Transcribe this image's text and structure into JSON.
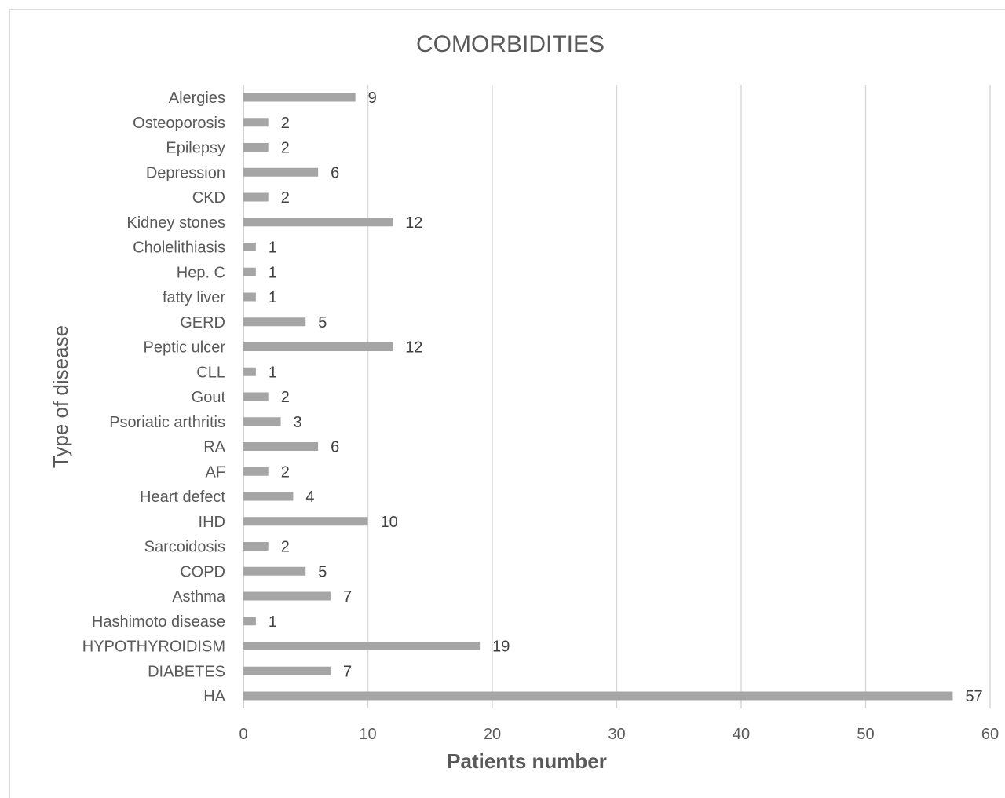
{
  "chart_data": {
    "type": "bar",
    "orientation": "horizontal",
    "title": "COMORBIDITIES",
    "xlabel": "Patients number",
    "ylabel": "Type of disease",
    "xlim": [
      0,
      60
    ],
    "x_ticks": [
      0,
      10,
      20,
      30,
      40,
      50,
      60
    ],
    "grid": true,
    "legend": "none",
    "bar_color": "#a5a5a5",
    "categories": [
      "HA",
      "DIABETES",
      "HYPOTHYROIDISM",
      "Hashimoto disease",
      "Asthma",
      "COPD",
      "Sarcoidosis",
      "IHD",
      "Heart defect",
      "AF",
      "RA",
      "Psoriatic arthritis",
      "Gout",
      "CLL",
      "Peptic ulcer",
      "GERD",
      "fatty liver",
      "Hep. C",
      "Cholelithiasis",
      "Kidney stones",
      "CKD",
      "Depression",
      "Epilepsy",
      "Osteoporosis",
      "Alergies"
    ],
    "values": [
      57,
      7,
      19,
      1,
      7,
      5,
      2,
      10,
      4,
      2,
      6,
      3,
      2,
      1,
      12,
      5,
      1,
      1,
      1,
      12,
      2,
      6,
      2,
      2,
      9
    ]
  }
}
